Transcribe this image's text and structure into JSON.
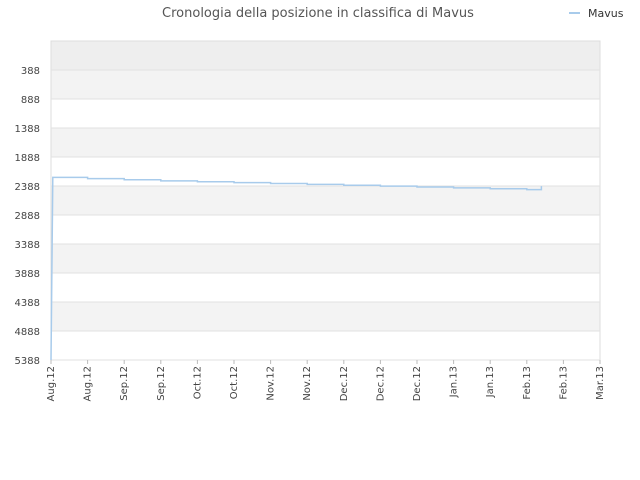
{
  "chart_data": {
    "type": "line",
    "title": "Cronologia della posizione in classifica di Mavus",
    "xlabel": "",
    "ylabel": "",
    "y_inverted": true,
    "ylim": [
      5388,
      388
    ],
    "y_ticks": [
      388,
      888,
      1388,
      1888,
      2388,
      2888,
      3388,
      3888,
      4388,
      4888,
      5388
    ],
    "x_tick_labels": [
      "Aug.12",
      "Aug.12",
      "Sep.12",
      "Sep.12",
      "Oct.12",
      "Oct.12",
      "Nov.12",
      "Nov.12",
      "Dec.12",
      "Dec.12",
      "Dec.12",
      "Jan.13",
      "Jan.13",
      "Feb.13",
      "Feb.13",
      "Mar.13"
    ],
    "legend": {
      "position": "top-right"
    },
    "grid": true,
    "series": [
      {
        "name": "Mavus",
        "color": "#a8cbeb",
        "points": [
          {
            "x": 0.0,
            "y": 5388
          },
          {
            "x": 0.05,
            "y": 2240
          },
          {
            "x": 1.0,
            "y": 2240
          },
          {
            "x": 1.0,
            "y": 2260
          },
          {
            "x": 2.0,
            "y": 2260
          },
          {
            "x": 2.0,
            "y": 2280
          },
          {
            "x": 3.0,
            "y": 2280
          },
          {
            "x": 3.0,
            "y": 2300
          },
          {
            "x": 4.0,
            "y": 2300
          },
          {
            "x": 4.0,
            "y": 2315
          },
          {
            "x": 5.0,
            "y": 2315
          },
          {
            "x": 5.0,
            "y": 2330
          },
          {
            "x": 6.0,
            "y": 2330
          },
          {
            "x": 6.0,
            "y": 2345
          },
          {
            "x": 7.0,
            "y": 2345
          },
          {
            "x": 7.0,
            "y": 2360
          },
          {
            "x": 8.0,
            "y": 2360
          },
          {
            "x": 8.0,
            "y": 2375
          },
          {
            "x": 9.0,
            "y": 2375
          },
          {
            "x": 9.0,
            "y": 2390
          },
          {
            "x": 10.0,
            "y": 2390
          },
          {
            "x": 10.0,
            "y": 2405
          },
          {
            "x": 11.0,
            "y": 2405
          },
          {
            "x": 11.0,
            "y": 2420
          },
          {
            "x": 12.0,
            "y": 2420
          },
          {
            "x": 12.0,
            "y": 2435
          },
          {
            "x": 13.0,
            "y": 2435
          },
          {
            "x": 13.0,
            "y": 2450
          },
          {
            "x": 13.4,
            "y": 2450
          },
          {
            "x": 13.4,
            "y": 2390
          }
        ]
      }
    ]
  }
}
